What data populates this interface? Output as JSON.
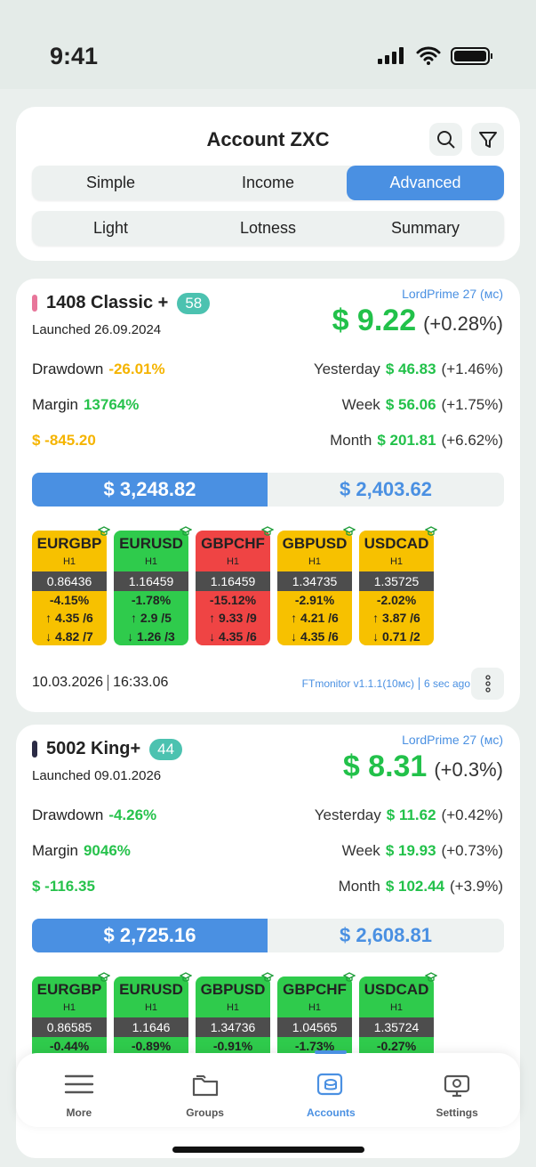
{
  "status_bar": {
    "time": "9:41"
  },
  "header": {
    "title": "Account ZXC",
    "tabs": [
      "Simple",
      "Income",
      "Advanced"
    ],
    "active_tab": 2,
    "subtabs": [
      "Light",
      "Lotness",
      "Summary"
    ]
  },
  "accounts": [
    {
      "name": "1408 Classic +",
      "badge": "58",
      "marker_color": "#e8769a",
      "launched": "Launched 26.09.2024",
      "server": "LordPrime 27 (мс)",
      "profit": "$ 9.22",
      "profit_change": "(+0.28%)",
      "left_stats": [
        {
          "label": "Drawdown",
          "value": "-26.01%",
          "color": "#f5b400"
        },
        {
          "label": "Margin",
          "value": "13764%",
          "color": "#27c24c"
        },
        {
          "value": "$ -845.20",
          "color": "#f5b400"
        }
      ],
      "right_stats": [
        {
          "label": "Yesterday",
          "value": "$ 46.83",
          "change": "(+1.46%)"
        },
        {
          "label": "Week",
          "value": "$ 56.06",
          "change": "(+1.75%)"
        },
        {
          "label": "Month",
          "value": "$ 201.81",
          "change": "(+6.62%)"
        }
      ],
      "balance": "$ 3,248.82",
      "equity": "$ 2,403.62",
      "pairs": [
        {
          "symbol": "EURGBP",
          "timeframe": "H1",
          "price": "0.86436",
          "change": "-4.15%",
          "up": "↑ 4.35 /6",
          "down": "↓ 4.82 /7",
          "color": "#f7c100"
        },
        {
          "symbol": "EURUSD",
          "timeframe": "H1",
          "price": "1.16459",
          "change": "-1.78%",
          "up": "↑ 2.9 /5",
          "down": "↓ 1.26 /3",
          "color": "#2fcb4c"
        },
        {
          "symbol": "GBPCHF",
          "timeframe": "H1",
          "price": "1.16459",
          "change": "-15.12%",
          "up": "↑ 9.33 /9",
          "down": "↓ 4.35 /6",
          "color": "#ef4444"
        },
        {
          "symbol": "GBPUSD",
          "timeframe": "H1",
          "price": "1.34735",
          "change": "-2.91%",
          "up": "↑ 4.21 /6",
          "down": "↓ 4.35 /6",
          "color": "#f7c100"
        },
        {
          "symbol": "USDCAD",
          "timeframe": "H1",
          "price": "1.35725",
          "change": "-2.02%",
          "up": "↑ 3.87 /6",
          "down": "↓ 0.71 /2",
          "color": "#f7c100"
        }
      ],
      "footer": {
        "date": "10.03.2026",
        "time": "16:33.06",
        "monitor": "FTmonitor v1.1.1(10мс)",
        "ago": "6 sec ago"
      }
    },
    {
      "name": "5002 King+",
      "badge": "44",
      "marker_color": "#2b2b45",
      "launched": "Launched 09.01.2026",
      "server": "LordPrime 27 (мс)",
      "profit": "$ 8.31",
      "profit_change": "(+0.3%)",
      "left_stats": [
        {
          "label": "Drawdown",
          "value": "-4.26%",
          "color": "#27c24c"
        },
        {
          "label": "Margin",
          "value": "9046%",
          "color": "#27c24c"
        },
        {
          "value": "$ -116.35",
          "color": "#27c24c"
        }
      ],
      "right_stats": [
        {
          "label": "Yesterday",
          "value": "$ 11.62",
          "change": "(+0.42%)"
        },
        {
          "label": "Week",
          "value": "$ 19.93",
          "change": "(+0.73%)"
        },
        {
          "label": "Month",
          "value": "$ 102.44",
          "change": "(+3.9%)"
        }
      ],
      "balance": "$ 2,725.16",
      "equity": "$ 2,608.81",
      "pairs": [
        {
          "symbol": "EURGBP",
          "timeframe": "H1",
          "price": "0.86585",
          "change": "-0.44%",
          "color": "#2fcb4c"
        },
        {
          "symbol": "EURUSD",
          "timeframe": "H1",
          "price": "1.1646",
          "change": "-0.89%",
          "color": "#2fcb4c"
        },
        {
          "symbol": "GBPUSD",
          "timeframe": "H1",
          "price": "1.34736",
          "change": "-0.91%",
          "color": "#2fcb4c"
        },
        {
          "symbol": "GBPCHF",
          "timeframe": "H1",
          "price": "1.04565",
          "change": "-1.73%",
          "color": "#2fcb4c"
        },
        {
          "symbol": "USDCAD",
          "timeframe": "H1",
          "price": "1.35724",
          "change": "-0.27%",
          "color": "#2fcb4c"
        }
      ]
    }
  ],
  "nav": {
    "items": [
      "More",
      "Groups",
      "Accounts",
      "Settings"
    ],
    "active": 2
  }
}
